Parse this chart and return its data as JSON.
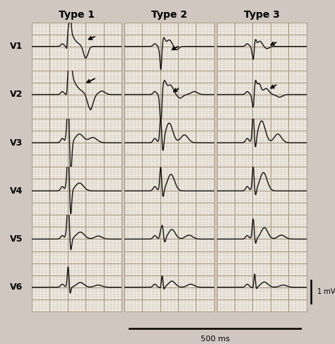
{
  "title_type1": "Type 1",
  "title_type2": "Type 2",
  "title_type3": "Type 3",
  "leads": [
    "V1",
    "V2",
    "V3",
    "V4",
    "V5",
    "V6"
  ],
  "bg_color": "#f0ece4",
  "grid_minor_color": "#c8c0b0",
  "grid_major_color": "#a89880",
  "line_color": "#111111",
  "fig_bg": "#e8e0d8",
  "outer_bg": "#d0c8c0",
  "scale_label": "1 mV",
  "time_label": "500 ms",
  "title_fontsize": 10,
  "lead_fontsize": 9
}
